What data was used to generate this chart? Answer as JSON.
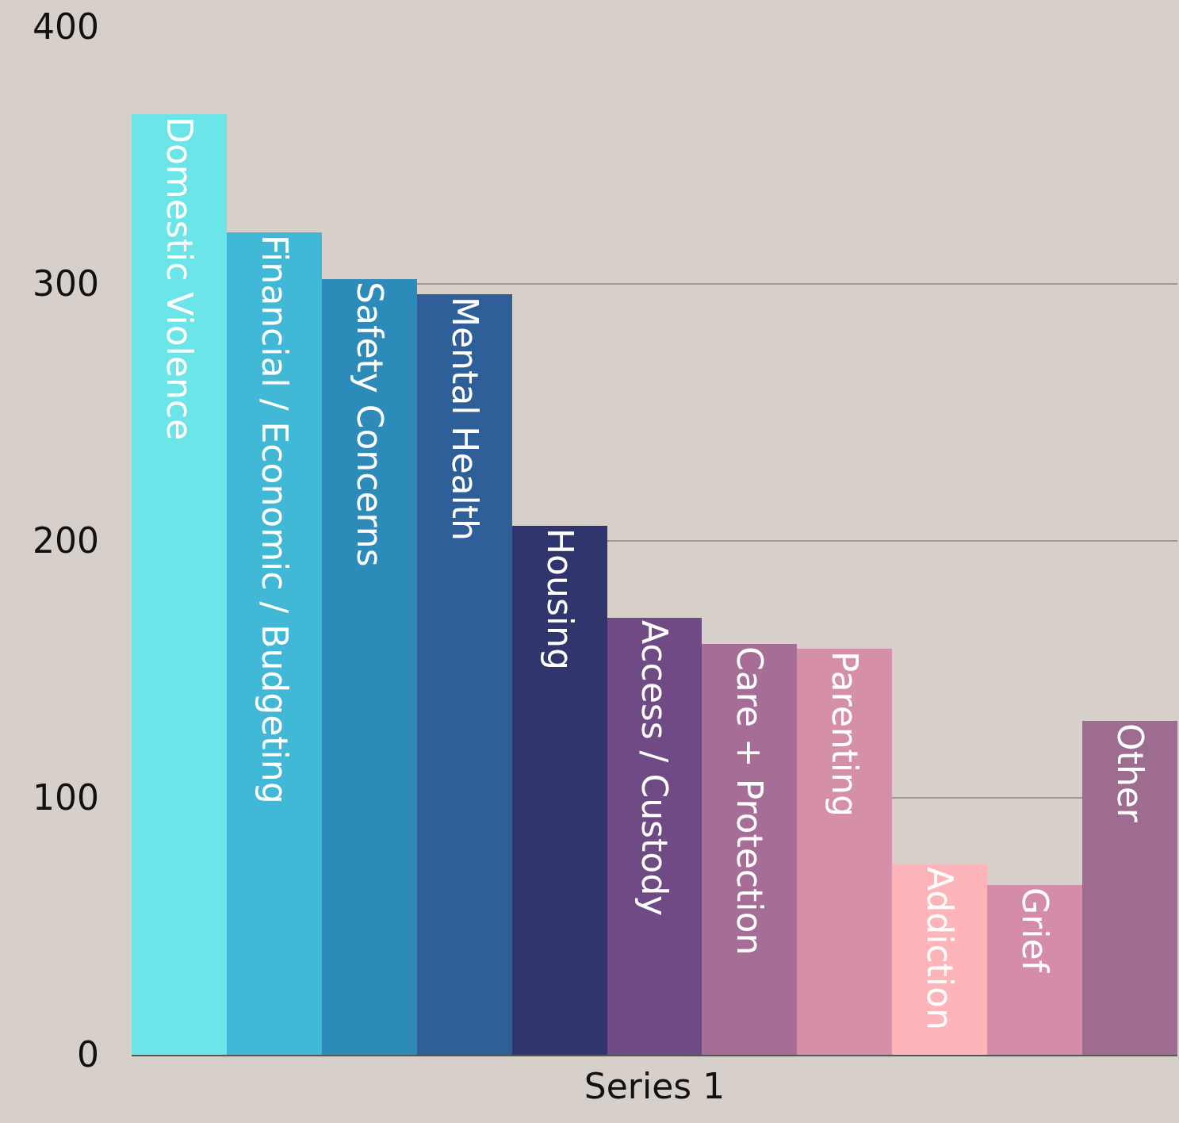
{
  "chart_data": {
    "type": "bar",
    "categories": [
      "Series 1"
    ],
    "ylim": [
      0,
      400
    ],
    "yticks": [
      0,
      100,
      200,
      300,
      400
    ],
    "grid": "y",
    "legend": false,
    "series": [
      {
        "name": "Domestic Violence",
        "color": "#6ce5e8",
        "values": [
          366
        ]
      },
      {
        "name": "Financial / Economic / Budgeting",
        "color": "#41b8d5",
        "values": [
          320
        ]
      },
      {
        "name": "Safety Concerns",
        "color": "#2d8bba",
        "values": [
          302
        ]
      },
      {
        "name": "Mental Health",
        "color": "#2f5f98",
        "values": [
          296
        ]
      },
      {
        "name": "Housing",
        "color": "#31356e",
        "values": [
          206
        ]
      },
      {
        "name": "Access / Custody",
        "color": "#704a85",
        "values": [
          170
        ]
      },
      {
        "name": "Care + Protection",
        "color": "#a66e96",
        "values": [
          160
        ]
      },
      {
        "name": "Parenting",
        "color": "#d68fa8",
        "values": [
          158
        ]
      },
      {
        "name": "Addiction",
        "color": "#fdb5b9",
        "values": [
          74
        ]
      },
      {
        "name": "Grief",
        "color": "#d48ca8",
        "values": [
          66
        ]
      },
      {
        "name": "Other",
        "color": "#9d6c90",
        "values": [
          130
        ]
      }
    ]
  }
}
